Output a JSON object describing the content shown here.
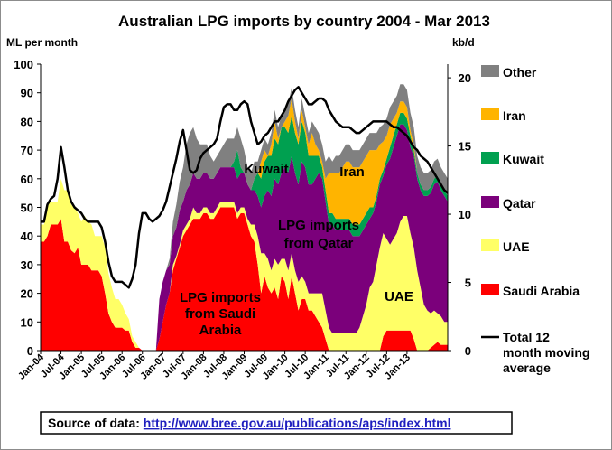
{
  "chart_data": {
    "type": "area",
    "title": "Australian LPG imports by country 2004 - Mar 2013",
    "ylabel": "ML per month",
    "y2label": "kb/d",
    "ylim": [
      0,
      100
    ],
    "y2lim": [
      0,
      21
    ],
    "yticks": [
      "0",
      "10",
      "20",
      "30",
      "40",
      "50",
      "60",
      "70",
      "80",
      "90",
      "100"
    ],
    "y2ticks": [
      "0",
      "5",
      "10",
      "15",
      "20"
    ],
    "xticks": [
      "Jan-04",
      "Jul-04",
      "Jan-05",
      "Jul-05",
      "Jan-06",
      "Jul-06",
      "Jan-07",
      "Jul-07",
      "Jan-08",
      "Jul-08",
      "Jan-09",
      "Jul-09",
      "Jan-10",
      "Jul-10",
      "Jan-11",
      "Jul-11",
      "Jan-12",
      "Jul-12",
      "Jan-13"
    ],
    "series": [
      {
        "name": "Saudi Arabia",
        "color": "#ff0000",
        "values": [
          38,
          38,
          40,
          44,
          44,
          44,
          46,
          38,
          38,
          35,
          34,
          36,
          30,
          30,
          30,
          28,
          28,
          28,
          26,
          20,
          13,
          10,
          8,
          8,
          8,
          7,
          7,
          3,
          1,
          1,
          0,
          0,
          0,
          0,
          0,
          4,
          10,
          16,
          20,
          28,
          32,
          36,
          40,
          42,
          44,
          46,
          46,
          46,
          48,
          48,
          46,
          46,
          48,
          50,
          50,
          50,
          50,
          50,
          46,
          48,
          48,
          44,
          40,
          38,
          30,
          20,
          26,
          22,
          20,
          22,
          18,
          26,
          24,
          18,
          26,
          20,
          14,
          18,
          18,
          14,
          14,
          12,
          10,
          8,
          4,
          0,
          0,
          0,
          0,
          0,
          0,
          0,
          0,
          0,
          0,
          0,
          0,
          0,
          0,
          0,
          0,
          5,
          7,
          7,
          7,
          7,
          7,
          7,
          7,
          7,
          4,
          0,
          0,
          0,
          0,
          1,
          2,
          3,
          2,
          2,
          2
        ]
      },
      {
        "name": "UAE",
        "color": "#ffff66",
        "values": [
          6,
          6,
          12,
          8,
          8,
          8,
          14,
          18,
          18,
          16,
          16,
          12,
          15,
          17,
          15,
          16,
          12,
          12,
          14,
          16,
          14,
          12,
          10,
          10,
          8,
          6,
          4,
          2,
          2,
          0,
          0,
          0,
          0,
          0,
          0,
          0,
          0,
          0,
          0,
          2,
          1,
          1,
          2,
          2,
          2,
          4,
          2,
          2,
          2,
          2,
          2,
          2,
          2,
          2,
          2,
          2,
          2,
          2,
          2,
          2,
          2,
          2,
          4,
          6,
          10,
          14,
          8,
          10,
          8,
          10,
          12,
          6,
          8,
          10,
          8,
          8,
          10,
          8,
          6,
          6,
          6,
          8,
          10,
          12,
          10,
          8,
          6,
          6,
          6,
          6,
          6,
          6,
          6,
          6,
          8,
          12,
          16,
          22,
          24,
          30,
          36,
          36,
          32,
          30,
          32,
          34,
          38,
          40,
          40,
          34,
          32,
          28,
          22,
          16,
          14,
          12,
          12,
          10,
          10,
          8,
          8
        ]
      },
      {
        "name": "Qatar",
        "color": "#7b007b",
        "values": [
          0,
          0,
          0,
          0,
          0,
          0,
          0,
          0,
          0,
          0,
          0,
          0,
          0,
          0,
          0,
          0,
          0,
          0,
          0,
          0,
          0,
          0,
          0,
          0,
          0,
          0,
          0,
          0,
          0,
          0,
          0,
          0,
          0,
          0,
          0,
          14,
          14,
          12,
          10,
          10,
          10,
          12,
          10,
          12,
          12,
          12,
          12,
          12,
          12,
          12,
          12,
          12,
          12,
          12,
          12,
          12,
          12,
          12,
          12,
          12,
          12,
          12,
          12,
          12,
          14,
          16,
          20,
          24,
          26,
          28,
          28,
          30,
          32,
          34,
          34,
          34,
          34,
          40,
          40,
          38,
          38,
          40,
          42,
          40,
          38,
          36,
          38,
          36,
          36,
          36,
          36,
          36,
          34,
          34,
          32,
          30,
          28,
          24,
          24,
          22,
          22,
          20,
          26,
          30,
          32,
          34,
          34,
          32,
          30,
          30,
          32,
          32,
          34,
          38,
          40,
          42,
          44,
          46,
          44,
          44,
          42
        ]
      },
      {
        "name": "Kuwait",
        "color": "#00a050",
        "values": [
          0,
          0,
          0,
          0,
          0,
          0,
          0,
          0,
          0,
          0,
          0,
          0,
          0,
          0,
          0,
          0,
          0,
          0,
          0,
          0,
          0,
          0,
          0,
          0,
          0,
          0,
          0,
          0,
          0,
          0,
          0,
          0,
          0,
          0,
          0,
          0,
          0,
          0,
          0,
          0,
          0,
          0,
          0,
          0,
          0,
          0,
          0,
          0,
          0,
          0,
          0,
          0,
          0,
          0,
          0,
          0,
          0,
          2,
          10,
          2,
          0,
          0,
          0,
          4,
          8,
          10,
          12,
          12,
          14,
          14,
          14,
          16,
          14,
          14,
          14,
          14,
          14,
          14,
          12,
          10,
          10,
          8,
          6,
          4,
          4,
          4,
          4,
          4,
          4,
          4,
          4,
          4,
          4,
          4,
          4,
          4,
          4,
          4,
          2,
          2,
          2,
          2,
          2,
          4,
          4,
          4,
          4,
          4,
          4,
          4,
          2,
          2,
          2,
          2,
          2,
          2,
          2,
          2,
          2,
          2,
          2
        ]
      },
      {
        "name": "Iran",
        "color": "#ffb400",
        "values": [
          0,
          0,
          0,
          0,
          0,
          0,
          0,
          0,
          0,
          0,
          0,
          0,
          0,
          0,
          0,
          0,
          0,
          0,
          0,
          0,
          0,
          0,
          0,
          0,
          0,
          0,
          0,
          0,
          0,
          0,
          0,
          0,
          0,
          0,
          0,
          0,
          0,
          0,
          0,
          0,
          0,
          0,
          0,
          0,
          0,
          0,
          0,
          0,
          0,
          0,
          0,
          0,
          0,
          0,
          0,
          0,
          0,
          0,
          0,
          0,
          0,
          0,
          0,
          0,
          0,
          6,
          4,
          0,
          4,
          6,
          2,
          0,
          2,
          6,
          6,
          4,
          2,
          4,
          2,
          4,
          8,
          4,
          2,
          2,
          4,
          14,
          14,
          16,
          16,
          18,
          20,
          20,
          20,
          20,
          20,
          20,
          20,
          20,
          20,
          16,
          12,
          10,
          8,
          8,
          6,
          4,
          4,
          4,
          4,
          2,
          2,
          0,
          0,
          0,
          0,
          0,
          0,
          0,
          0,
          0,
          0
        ]
      },
      {
        "name": "Other",
        "color": "#808080",
        "values": [
          0,
          0,
          0,
          0,
          0,
          0,
          0,
          0,
          0,
          0,
          0,
          0,
          0,
          0,
          0,
          0,
          0,
          0,
          0,
          0,
          0,
          0,
          0,
          0,
          0,
          0,
          0,
          0,
          0,
          0,
          0,
          0,
          0,
          0,
          0,
          0,
          0,
          0,
          2,
          5,
          8,
          10,
          12,
          16,
          18,
          16,
          14,
          12,
          10,
          10,
          8,
          6,
          6,
          6,
          8,
          10,
          10,
          8,
          8,
          10,
          8,
          6,
          6,
          6,
          4,
          4,
          4,
          4,
          4,
          4,
          4,
          4,
          4,
          4,
          4,
          4,
          4,
          4,
          4,
          4,
          4,
          6,
          6,
          6,
          6,
          6,
          4,
          6,
          6,
          6,
          6,
          6,
          6,
          6,
          6,
          6,
          6,
          6,
          6,
          6,
          6,
          6,
          6,
          6,
          6,
          6,
          6,
          6,
          6,
          6,
          6,
          6,
          6,
          6,
          6,
          6,
          6,
          6,
          6,
          6,
          6
        ]
      },
      {
        "name": "Total 12 month moving average",
        "type": "line",
        "color": "#000000",
        "values": [
          45,
          45,
          51,
          53,
          54,
          60,
          71,
          64,
          56,
          52,
          50,
          49,
          48,
          46,
          45,
          45,
          45,
          45,
          43,
          38,
          31,
          26,
          24,
          24,
          24,
          23,
          22,
          25,
          30,
          41,
          48,
          48,
          46,
          45,
          46,
          47,
          49,
          52,
          57,
          62,
          67,
          73,
          77,
          70,
          63,
          62,
          63,
          67,
          69,
          70,
          71,
          72,
          74,
          80,
          85,
          86,
          86,
          84,
          84,
          86,
          87,
          86,
          80,
          76,
          72,
          73,
          75,
          76,
          78,
          80,
          80,
          82,
          84,
          87,
          89,
          91,
          92,
          90,
          88,
          86,
          86,
          87,
          88,
          88,
          87,
          84,
          82,
          80,
          79,
          78,
          78,
          78,
          77,
          76,
          76,
          77,
          78,
          79,
          80,
          80,
          80,
          80,
          80,
          79,
          78,
          78,
          77,
          76,
          75,
          73,
          71,
          70,
          68,
          67,
          66,
          64,
          62,
          60,
          58,
          56,
          55
        ]
      }
    ],
    "legend_position": "right",
    "annotations": [
      {
        "lines": [
          "Kuwait"
        ]
      },
      {
        "lines": [
          "Iran"
        ]
      },
      {
        "lines": [
          "LPG imports",
          "from Qatar"
        ]
      },
      {
        "lines": [
          "LPG imports",
          "from Saudi",
          "Arabia"
        ]
      },
      {
        "lines": [
          "UAE"
        ]
      }
    ],
    "source_label": "Source of data: ",
    "source_url": "http://www.bree.gov.au/publications/aps/index.html"
  }
}
